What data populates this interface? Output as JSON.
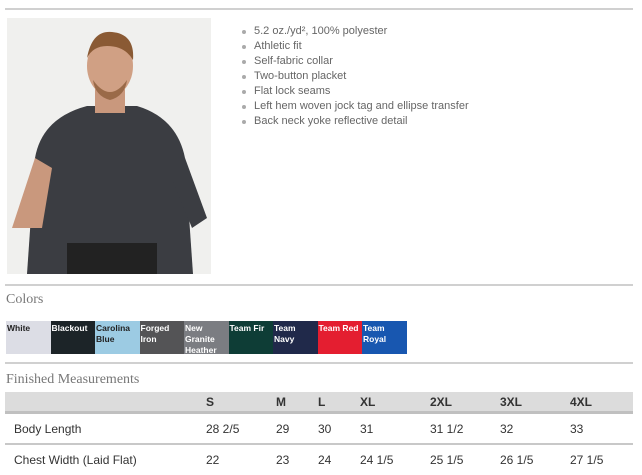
{
  "product_image": "man-wearing-dark-polo-photo",
  "features": [
    "5.2 oz./yd², 100% polyester",
    "Athletic fit",
    "Self-fabric collar",
    "Two-button placket",
    "Flat lock seams",
    "Left hem woven jock tag and ellipse transfer",
    "Back neck yoke reflective detail"
  ],
  "colors_title": "Colors",
  "colors": [
    {
      "name": "White",
      "hex": "#dcdde5",
      "text": "#222"
    },
    {
      "name": "Blackout",
      "hex": "#1c2428",
      "text": "#fff"
    },
    {
      "name": "Carolina Blue",
      "hex": "#9ccbe3",
      "text": "#222"
    },
    {
      "name": "Forged Iron",
      "hex": "#545456",
      "text": "#fff"
    },
    {
      "name": "New Granite Heather",
      "hex": "#7b7d82",
      "text": "#fff"
    },
    {
      "name": "Team Fir",
      "hex": "#0e3d36",
      "text": "#fff"
    },
    {
      "name": "Team Navy",
      "hex": "#20294a",
      "text": "#fff"
    },
    {
      "name": "Team Red",
      "hex": "#e41e30",
      "text": "#fff"
    },
    {
      "name": "Team Royal",
      "hex": "#1857b0",
      "text": "#fff"
    }
  ],
  "measurements_title": "Finished Measurements",
  "sizes": [
    "S",
    "M",
    "L",
    "XL",
    "2XL",
    "3XL",
    "4XL"
  ],
  "rows": [
    {
      "label": "Body Length",
      "values": [
        "28 2/5",
        "29",
        "30",
        "31",
        "31 1/2",
        "32",
        "33"
      ]
    },
    {
      "label": "Chest Width (Laid Flat)",
      "values": [
        "22",
        "23",
        "24",
        "24 1/5",
        "25 1/5",
        "26 1/5",
        "27 1/5"
      ]
    }
  ]
}
